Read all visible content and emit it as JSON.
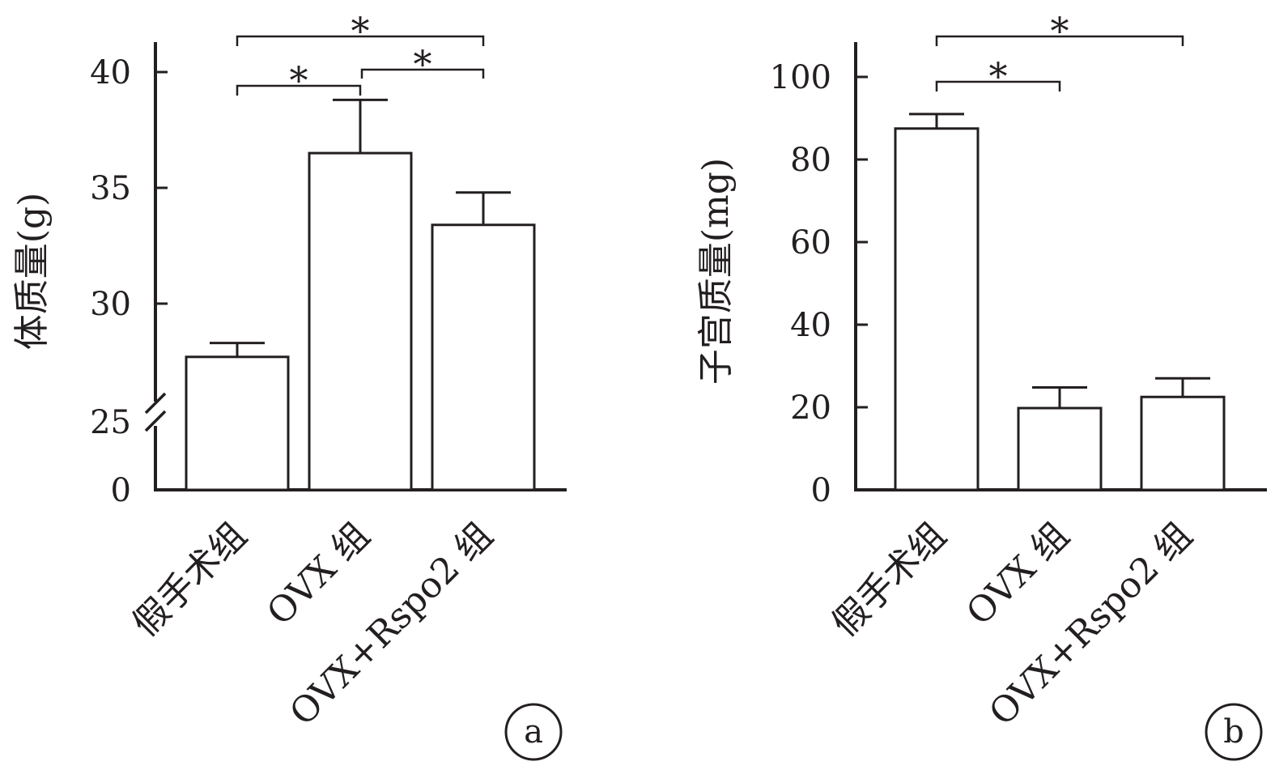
{
  "chart_data": [
    {
      "type": "bar",
      "panel_label": "a",
      "ylabel": "体质量(g)",
      "categories": [
        "假手术组",
        "OVX 组",
        "OVX+Rspo2 组"
      ],
      "values": [
        27.7,
        36.5,
        33.4
      ],
      "errors": [
        0.6,
        2.3,
        1.4
      ],
      "y_break": {
        "shown": true,
        "below": 25
      },
      "ylim": [
        25,
        41
      ],
      "yticks": [
        {
          "value": 0,
          "label": "0"
        },
        {
          "value": 25,
          "label": "25"
        },
        {
          "value": 30,
          "label": "30"
        },
        {
          "value": 35,
          "label": "35"
        },
        {
          "value": 40,
          "label": "40"
        }
      ],
      "significance": [
        {
          "from": 0,
          "to": 1,
          "label": "*"
        },
        {
          "from": 1,
          "to": 2,
          "label": "*"
        },
        {
          "from": 0,
          "to": 2,
          "label": "*"
        }
      ],
      "grid": false,
      "legend": "none"
    },
    {
      "type": "bar",
      "panel_label": "b",
      "ylabel": "子宫质量(mg)",
      "categories": [
        "假手术组",
        "OVX 组",
        "OVX+Rspo2 组"
      ],
      "values": [
        87.5,
        19.8,
        22.5
      ],
      "errors": [
        3.5,
        5.0,
        4.5
      ],
      "ylim": [
        0,
        108
      ],
      "yticks": [
        {
          "value": 0,
          "label": "0"
        },
        {
          "value": 20,
          "label": "20"
        },
        {
          "value": 40,
          "label": "40"
        },
        {
          "value": 60,
          "label": "60"
        },
        {
          "value": 80,
          "label": "80"
        },
        {
          "value": 100,
          "label": "100"
        }
      ],
      "significance": [
        {
          "from": 0,
          "to": 1,
          "label": "*"
        },
        {
          "from": 0,
          "to": 2,
          "label": "*"
        }
      ],
      "grid": false,
      "legend": "none"
    }
  ]
}
